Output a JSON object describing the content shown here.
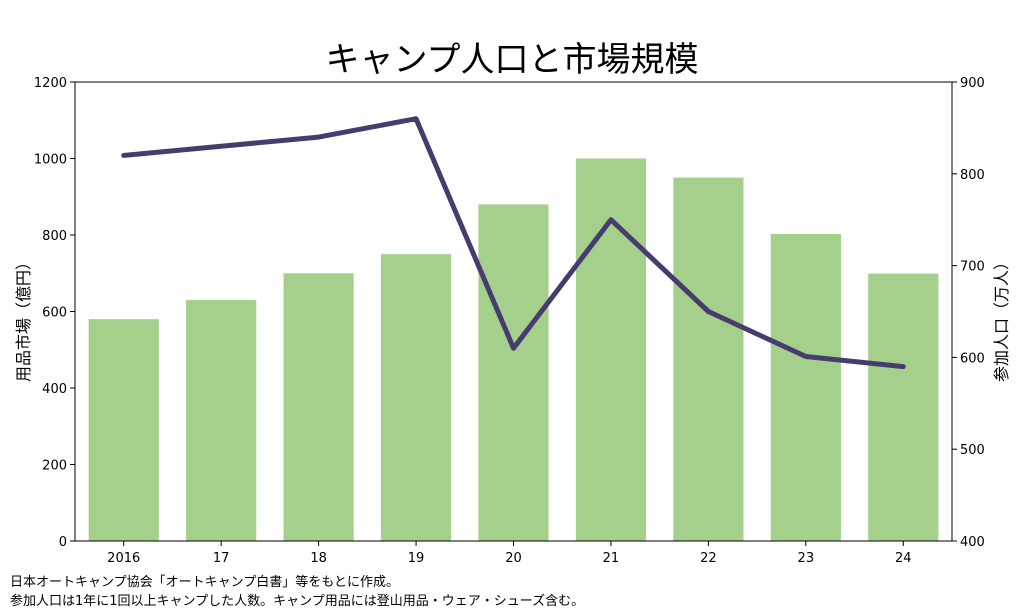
{
  "chart_data": {
    "type": "bar",
    "title": "キャンプ人口と市場規模",
    "categories": [
      "2016",
      "17",
      "18",
      "19",
      "20",
      "21",
      "22",
      "23",
      "24"
    ],
    "series": [
      {
        "name": "用品市場",
        "type": "bar",
        "axis": "left",
        "color": "#a5d08b",
        "values": [
          580,
          630,
          700,
          750,
          880,
          1000,
          950,
          803,
          699
        ]
      },
      {
        "name": "参加人口",
        "type": "line",
        "axis": "right",
        "color": "#473c6f",
        "values": [
          820,
          830,
          840,
          860,
          610,
          750,
          650,
          601,
          590
        ]
      }
    ],
    "ylabel_left": "用品市場（億円）",
    "ylabel_right": "参加人口（万人）",
    "ylim_left": [
      0,
      1200
    ],
    "ylim_right": [
      400,
      900
    ],
    "yticks_left": [
      0,
      200,
      400,
      600,
      800,
      1000,
      1200
    ],
    "yticks_right": [
      400,
      500,
      600,
      700,
      800,
      900
    ],
    "grid": false,
    "legend": "none"
  },
  "notes": [
    "日本オートキャンプ協会「オートキャンプ白書」等をもとに作成。",
    "参加人口は1年に1回以上キャンプした人数。キャンプ用品には登山用品・ウェア・シューズ含む。"
  ]
}
